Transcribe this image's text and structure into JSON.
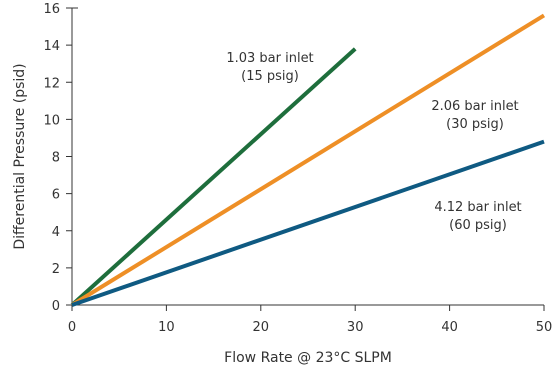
{
  "chart_data": {
    "type": "line",
    "xlabel": "Flow Rate @ 23°C SLPM",
    "ylabel": "Differential Pressure (psid)",
    "xlim": [
      0,
      50
    ],
    "ylim": [
      0,
      16
    ],
    "xticks": [
      0,
      10,
      20,
      30,
      40,
      50
    ],
    "yticks": [
      0,
      2,
      4,
      6,
      8,
      10,
      12,
      14,
      16
    ],
    "grid": false,
    "legend": "none",
    "series": [
      {
        "label_line1": "1.03 bar inlet",
        "label_line2": "(15 psig)",
        "color": "#1e6e3c",
        "x": [
          0,
          30
        ],
        "y": [
          0,
          13.8
        ]
      },
      {
        "label_line1": "2.06 bar inlet",
        "label_line2": "(30 psig)",
        "color": "#ee8f26",
        "x": [
          0,
          50
        ],
        "y": [
          0,
          15.6
        ]
      },
      {
        "label_line1": "4.12 bar inlet",
        "label_line2": "(60 psig)",
        "color": "#0f5a82",
        "x": [
          0,
          50
        ],
        "y": [
          0,
          8.8
        ]
      }
    ]
  }
}
